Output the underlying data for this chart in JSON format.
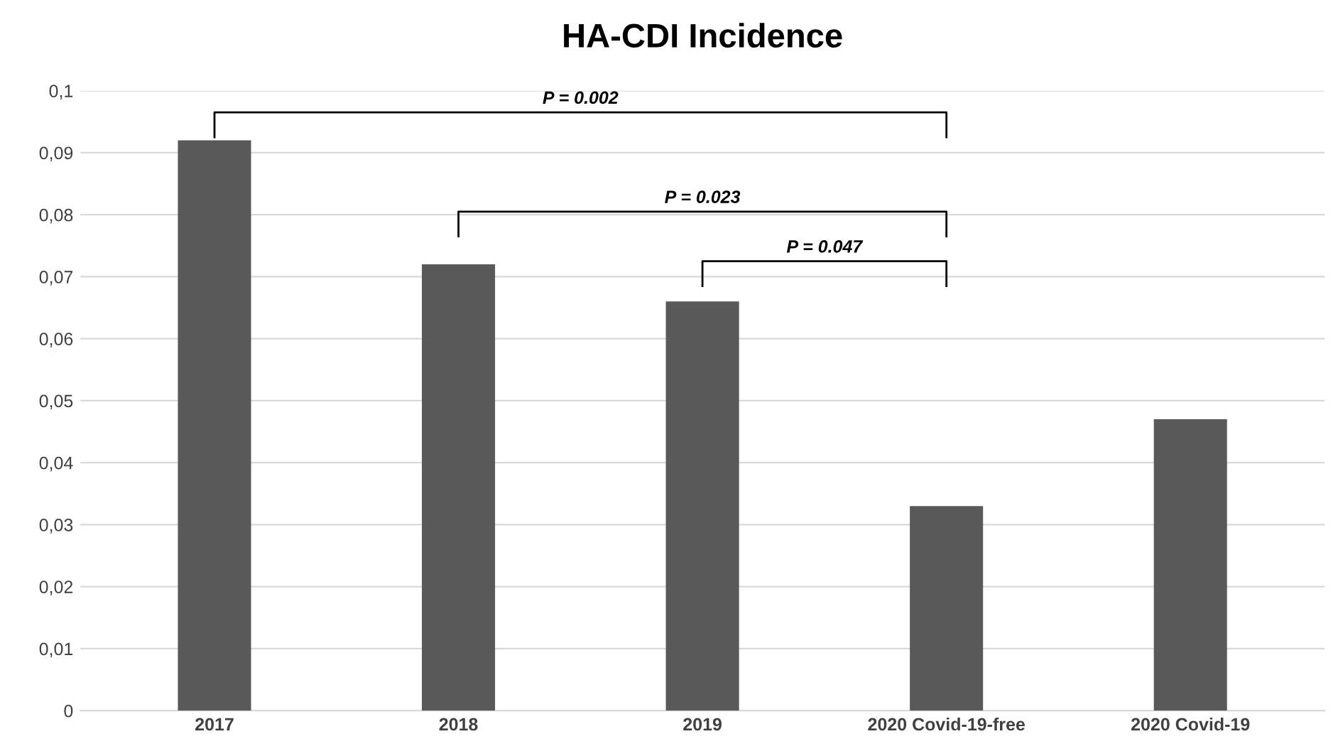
{
  "chart_data": {
    "type": "bar",
    "title": "HA-CDI Incidence",
    "categories": [
      "2017",
      "2018",
      "2019",
      "2020 Covid-19-free",
      "2020 Covid-19"
    ],
    "values": [
      0.092,
      0.072,
      0.066,
      0.033,
      0.047
    ],
    "color": "#595959",
    "ylim": [
      0,
      0.1
    ],
    "yticks": [
      0,
      {
        "value": 0.01,
        "label": "0,01"
      },
      {
        "value": 0.02,
        "label": "0,02"
      },
      {
        "value": 0.03,
        "label": "0,03"
      },
      {
        "value": 0.04,
        "label": "0,04"
      },
      {
        "value": 0.05,
        "label": "0,05"
      },
      {
        "value": 0.06,
        "label": "0,06"
      },
      {
        "value": 0.07,
        "label": "0,07"
      },
      {
        "value": 0.08,
        "label": "0,08"
      },
      {
        "value": 0.09,
        "label": "0,09"
      },
      {
        "value": 0.1,
        "label": "0,1"
      }
    ],
    "grid": "y",
    "annotations": [
      "P = 0.002",
      "P = 0.023",
      "P = 0.047"
    ]
  }
}
